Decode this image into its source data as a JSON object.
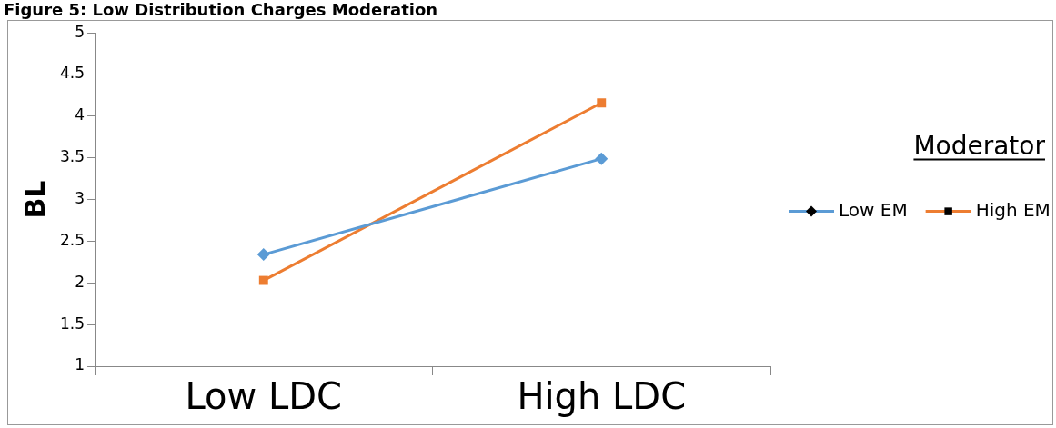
{
  "chart_data": {
    "type": "line",
    "title": "Figure 5: Low Distribution Charges Moderation",
    "ylabel": "BL",
    "legend_title": "Moderator",
    "categories": [
      "Low LDC",
      "High LDC"
    ],
    "series": [
      {
        "name": "Low EM",
        "color": "#5b9bd5",
        "marker": "diamond",
        "values": [
          2.34,
          3.49
        ]
      },
      {
        "name": "High EM",
        "color": "#ed7d31",
        "marker": "square",
        "values": [
          2.03,
          4.16
        ]
      }
    ],
    "ylim": [
      1,
      5
    ],
    "yticks": [
      1,
      1.5,
      2,
      2.5,
      3,
      3.5,
      4,
      4.5,
      5
    ],
    "grid": false,
    "legend": "right",
    "line_style": "solid"
  }
}
